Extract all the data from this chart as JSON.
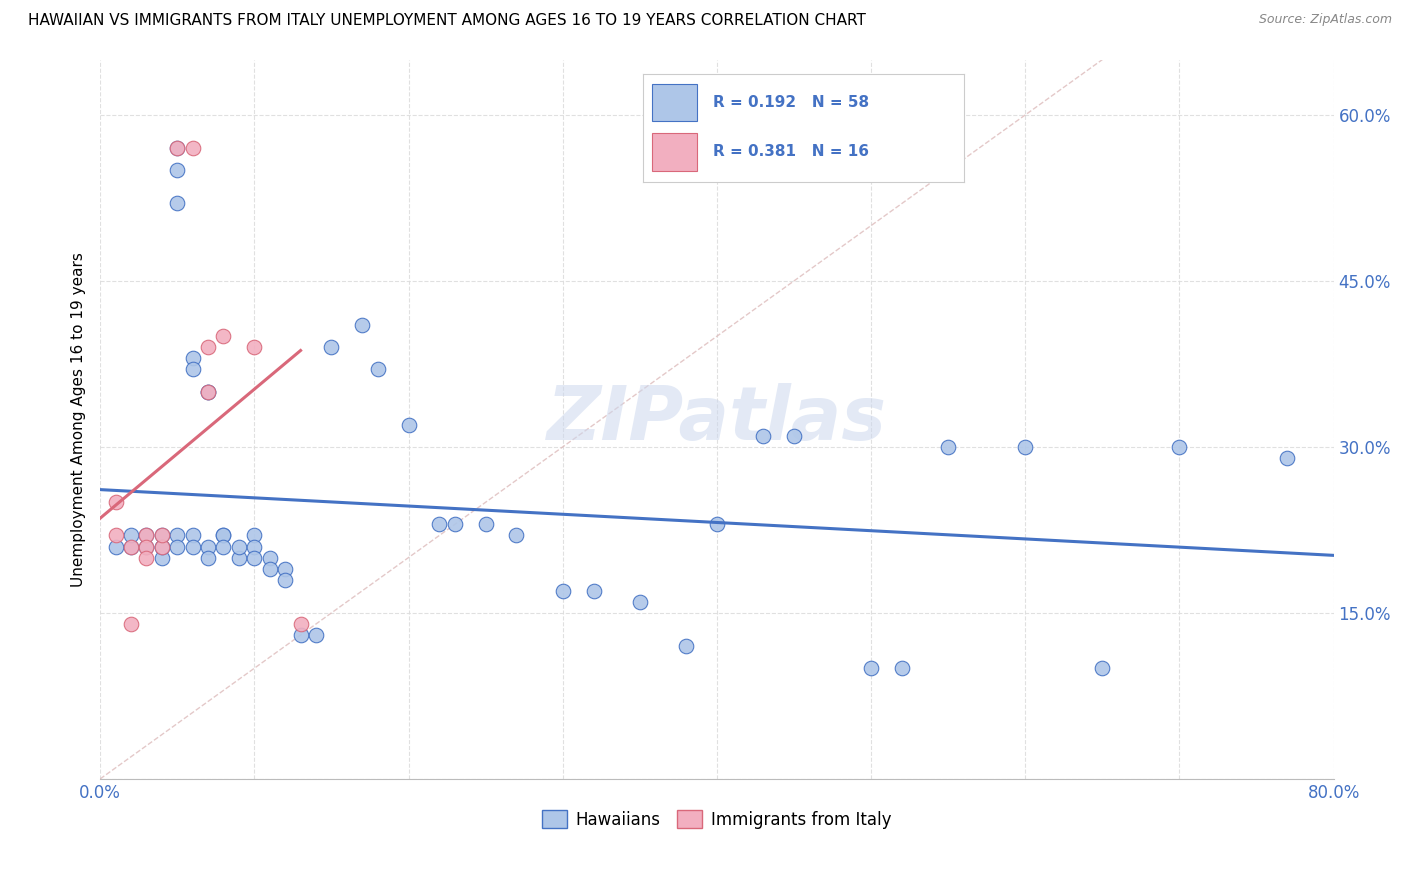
{
  "title": "HAWAIIAN VS IMMIGRANTS FROM ITALY UNEMPLOYMENT AMONG AGES 16 TO 19 YEARS CORRELATION CHART",
  "source": "Source: ZipAtlas.com",
  "ylabel": "Unemployment Among Ages 16 to 19 years",
  "xlim": [
    0.0,
    0.8
  ],
  "ylim": [
    0.0,
    0.65
  ],
  "xticks": [
    0.0,
    0.1,
    0.2,
    0.3,
    0.4,
    0.5,
    0.6,
    0.7,
    0.8
  ],
  "xticklabels": [
    "0.0%",
    "",
    "",
    "",
    "",
    "",
    "",
    "",
    "80.0%"
  ],
  "yticks": [
    0.0,
    0.15,
    0.3,
    0.45,
    0.6
  ],
  "yticklabels": [
    "",
    "15.0%",
    "30.0%",
    "45.0%",
    "60.0%"
  ],
  "watermark": "ZIPatlas",
  "legend_r1": "R = 0.192",
  "legend_n1": "N = 58",
  "legend_r2": "R = 0.381",
  "legend_n2": "N = 16",
  "color_hawaiian": "#aec6e8",
  "color_italy": "#f2afc0",
  "color_line_hawaiian": "#4472c4",
  "color_line_italy": "#d9687a",
  "color_diag": "#ddbbbb",
  "hawaiian_x": [
    0.01,
    0.02,
    0.02,
    0.03,
    0.03,
    0.04,
    0.04,
    0.04,
    0.04,
    0.05,
    0.05,
    0.05,
    0.05,
    0.05,
    0.06,
    0.06,
    0.06,
    0.06,
    0.07,
    0.07,
    0.07,
    0.07,
    0.08,
    0.08,
    0.08,
    0.09,
    0.09,
    0.1,
    0.1,
    0.1,
    0.11,
    0.11,
    0.12,
    0.12,
    0.13,
    0.14,
    0.15,
    0.17,
    0.18,
    0.2,
    0.22,
    0.23,
    0.25,
    0.27,
    0.3,
    0.32,
    0.35,
    0.38,
    0.4,
    0.43,
    0.45,
    0.5,
    0.52,
    0.55,
    0.6,
    0.65,
    0.7,
    0.77
  ],
  "hawaiian_y": [
    0.21,
    0.21,
    0.22,
    0.21,
    0.22,
    0.21,
    0.22,
    0.2,
    0.21,
    0.55,
    0.57,
    0.22,
    0.21,
    0.52,
    0.38,
    0.37,
    0.22,
    0.21,
    0.35,
    0.35,
    0.21,
    0.2,
    0.22,
    0.22,
    0.21,
    0.2,
    0.21,
    0.22,
    0.21,
    0.2,
    0.2,
    0.19,
    0.19,
    0.18,
    0.13,
    0.13,
    0.39,
    0.41,
    0.37,
    0.32,
    0.23,
    0.23,
    0.23,
    0.22,
    0.17,
    0.17,
    0.16,
    0.12,
    0.23,
    0.31,
    0.31,
    0.1,
    0.1,
    0.3,
    0.3,
    0.1,
    0.3,
    0.29
  ],
  "italy_x": [
    0.01,
    0.01,
    0.02,
    0.02,
    0.03,
    0.03,
    0.03,
    0.04,
    0.04,
    0.05,
    0.06,
    0.07,
    0.07,
    0.08,
    0.1,
    0.13
  ],
  "italy_y": [
    0.25,
    0.22,
    0.21,
    0.14,
    0.22,
    0.21,
    0.2,
    0.21,
    0.22,
    0.57,
    0.57,
    0.35,
    0.39,
    0.4,
    0.39,
    0.14
  ],
  "background_color": "#ffffff",
  "grid_color": "#dddddd"
}
